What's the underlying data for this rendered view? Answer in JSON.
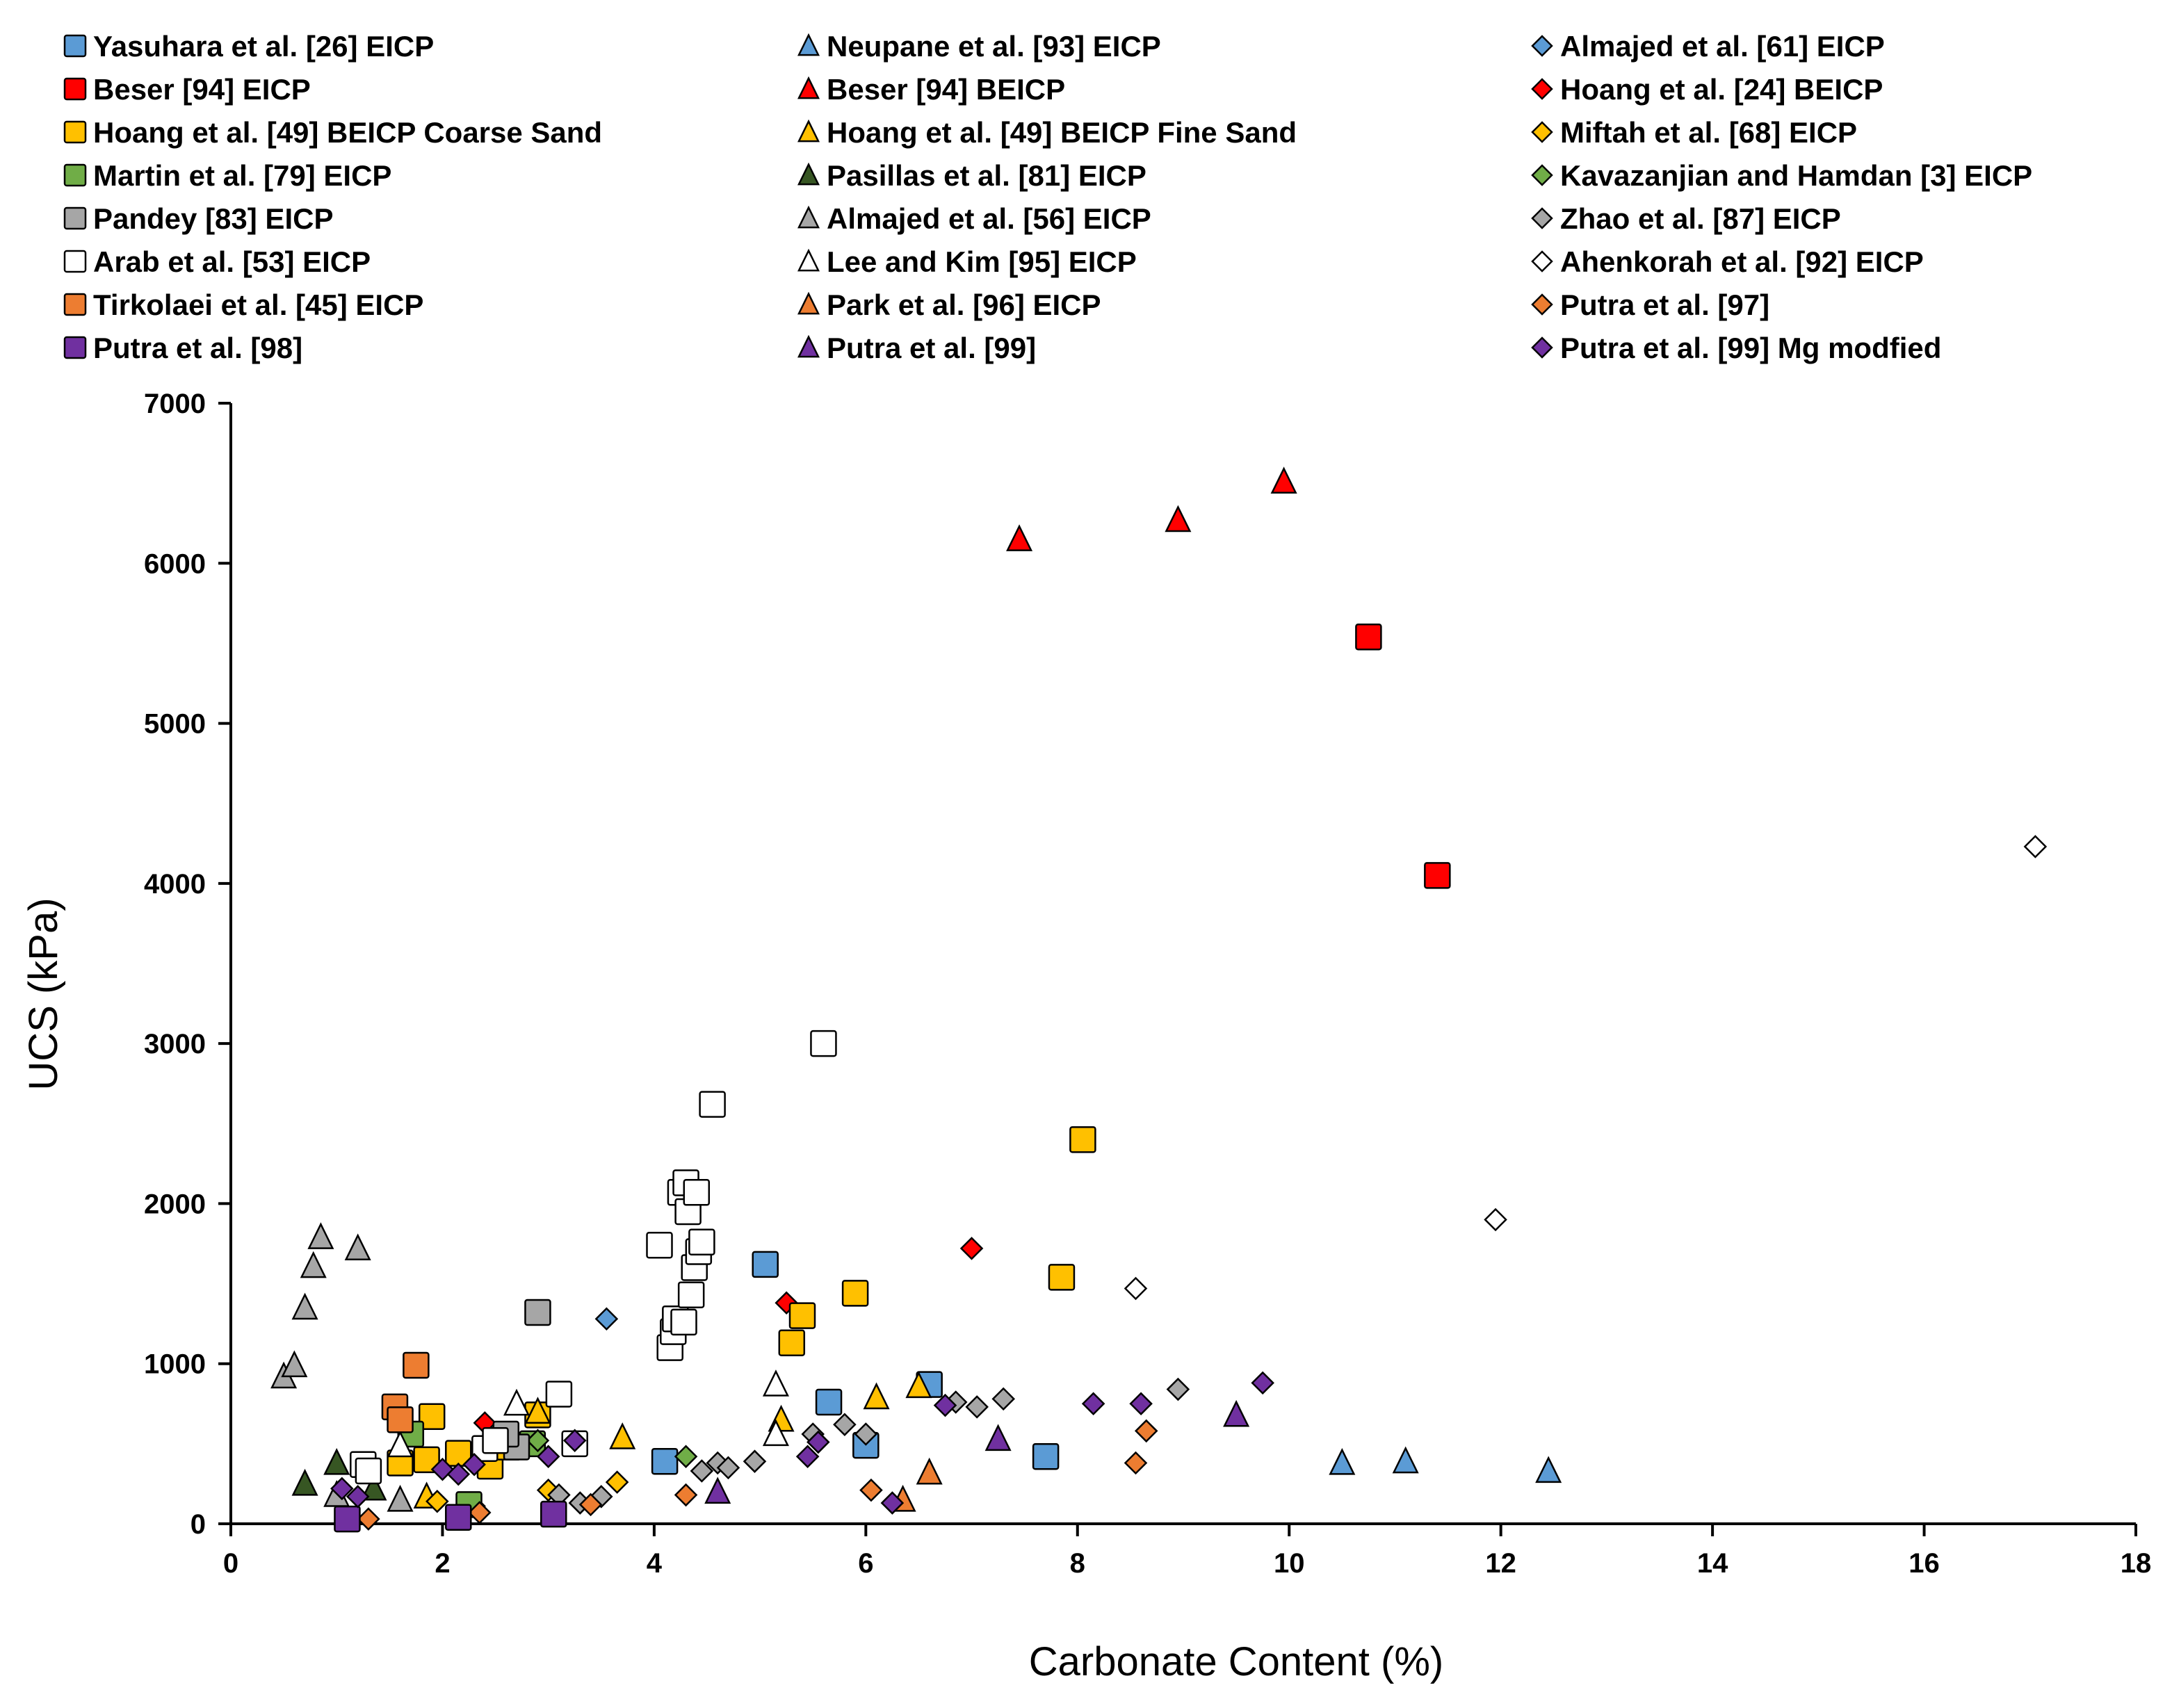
{
  "chart_data": {
    "type": "scatter",
    "xlabel": "Carbonate Content (%)",
    "ylabel": "UCS (kPa)",
    "xlim": [
      0,
      18
    ],
    "ylim": [
      0,
      7000
    ],
    "xticks": [
      "0",
      "2",
      "4",
      "6",
      "8",
      "10",
      "12",
      "14",
      "16",
      "18"
    ],
    "yticks": [
      "0",
      "1000",
      "2000",
      "3000",
      "4000",
      "5000",
      "6000",
      "7000"
    ],
    "grid": false,
    "legend_position": "top",
    "series": [
      {
        "name": "Yasuhara et al. [26] EICP",
        "marker": "square",
        "color": "#5b9bd5",
        "points": [
          [
            4.1,
            390
          ],
          [
            5.05,
            1620
          ],
          [
            5.65,
            760
          ],
          [
            6.0,
            490
          ],
          [
            6.6,
            870
          ],
          [
            7.7,
            420
          ]
        ]
      },
      {
        "name": "Neupane et al. [93] EICP",
        "marker": "triangle",
        "color": "#5b9bd5",
        "points": [
          [
            10.5,
            380
          ],
          [
            11.1,
            390
          ],
          [
            12.45,
            330
          ]
        ]
      },
      {
        "name": "Almajed et al. [61] EICP",
        "marker": "diamond",
        "color": "#5b9bd5",
        "points": [
          [
            3.55,
            1280
          ]
        ]
      },
      {
        "name": "Beser [94] EICP",
        "marker": "square",
        "color": "#ff0000",
        "points": [
          [
            10.75,
            5540
          ],
          [
            11.4,
            4050
          ]
        ]
      },
      {
        "name": "Beser [94] BEICP",
        "marker": "triangle",
        "color": "#ff0000",
        "points": [
          [
            7.45,
            6150
          ],
          [
            8.95,
            6270
          ],
          [
            9.95,
            6510
          ]
        ]
      },
      {
        "name": "Hoang et al. [24] BEICP",
        "marker": "diamond",
        "color": "#ff0000",
        "points": [
          [
            2.4,
            630
          ],
          [
            5.25,
            1380
          ],
          [
            7.0,
            1720
          ]
        ]
      },
      {
        "name": "Hoang et al. [49] BEICP Coarse Sand",
        "marker": "square",
        "color": "#ffc000",
        "points": [
          [
            1.6,
            380
          ],
          [
            1.9,
            670
          ],
          [
            1.85,
            400
          ],
          [
            2.15,
            440
          ],
          [
            2.45,
            360
          ],
          [
            2.9,
            680
          ],
          [
            5.3,
            1130
          ],
          [
            5.4,
            1300
          ],
          [
            5.9,
            1440
          ],
          [
            7.85,
            1540
          ],
          [
            8.05,
            2400
          ]
        ]
      },
      {
        "name": "Hoang et al. [49] BEICP Fine Sand",
        "marker": "triangle",
        "color": "#ffc000",
        "points": [
          [
            1.85,
            170
          ],
          [
            2.6,
            470
          ],
          [
            2.9,
            700
          ],
          [
            3.7,
            540
          ],
          [
            5.2,
            650
          ],
          [
            6.1,
            790
          ],
          [
            6.5,
            860
          ]
        ]
      },
      {
        "name": "Miftah et al. [68] EICP",
        "marker": "diamond",
        "color": "#ffc000",
        "points": [
          [
            1.95,
            140
          ],
          [
            2.3,
            110
          ],
          [
            3.0,
            210
          ],
          [
            3.65,
            260
          ]
        ]
      },
      {
        "name": "Martin et al. [79] EICP",
        "marker": "square",
        "color": "#70ad47",
        "points": [
          [
            1.7,
            560
          ],
          [
            2.25,
            120
          ],
          [
            2.85,
            500
          ]
        ]
      },
      {
        "name": "Pasillas et al. [81] EICP",
        "marker": "triangle",
        "color": "#375623",
        "points": [
          [
            0.7,
            250
          ],
          [
            1.0,
            380
          ],
          [
            1.35,
            220
          ]
        ]
      },
      {
        "name": "Kavazanjian and Hamdan [3] EICP",
        "marker": "diamond",
        "color": "#70ad47",
        "points": [
          [
            4.3,
            420
          ],
          [
            2.9,
            520
          ]
        ]
      },
      {
        "name": "Pandey [83] EICP",
        "marker": "square",
        "color": "#a6a6a6",
        "points": [
          [
            2.9,
            1320
          ],
          [
            2.7,
            480
          ],
          [
            2.6,
            560
          ]
        ]
      },
      {
        "name": "Almajed et al. [56] EICP",
        "marker": "triangle",
        "color": "#a6a6a6",
        "points": [
          [
            0.5,
            920
          ],
          [
            0.6,
            990
          ],
          [
            0.7,
            1350
          ],
          [
            0.78,
            1610
          ],
          [
            0.85,
            1790
          ],
          [
            1.2,
            1720
          ],
          [
            1.6,
            150
          ],
          [
            1.0,
            180
          ]
        ]
      },
      {
        "name": "Zhao et al. [87] EICP",
        "marker": "diamond",
        "color": "#a6a6a6",
        "points": [
          [
            3.1,
            180
          ],
          [
            3.3,
            130
          ],
          [
            3.5,
            170
          ],
          [
            4.45,
            330
          ],
          [
            4.6,
            380
          ],
          [
            4.7,
            350
          ],
          [
            4.95,
            390
          ],
          [
            5.5,
            560
          ],
          [
            5.8,
            620
          ],
          [
            6.0,
            560
          ],
          [
            6.85,
            760
          ],
          [
            7.05,
            730
          ],
          [
            7.3,
            780
          ],
          [
            8.95,
            840
          ]
        ]
      },
      {
        "name": "Arab et al. [53] EICP",
        "marker": "square",
        "color": "#ffffff",
        "points": [
          [
            1.25,
            370
          ],
          [
            1.3,
            330
          ],
          [
            2.4,
            470
          ],
          [
            2.5,
            520
          ],
          [
            3.1,
            810
          ],
          [
            3.25,
            500
          ],
          [
            4.05,
            1740
          ],
          [
            4.15,
            1100
          ],
          [
            4.18,
            1200
          ],
          [
            4.2,
            1280
          ],
          [
            4.25,
            2070
          ],
          [
            4.28,
            1260
          ],
          [
            4.3,
            2130
          ],
          [
            4.32,
            1950
          ],
          [
            4.35,
            1430
          ],
          [
            4.38,
            1600
          ],
          [
            4.4,
            2070
          ],
          [
            4.42,
            1700
          ],
          [
            4.45,
            1760
          ],
          [
            4.55,
            2620
          ],
          [
            5.6,
            3000
          ]
        ]
      },
      {
        "name": "Lee and Kim [95] EICP",
        "marker": "triangle",
        "color": "#ffffff",
        "points": [
          [
            1.6,
            490
          ],
          [
            2.7,
            750
          ],
          [
            5.15,
            870
          ],
          [
            5.15,
            560
          ]
        ]
      },
      {
        "name": "Ahenkorah et al. [92] EICP",
        "marker": "diamond",
        "color": "#ffffff",
        "points": [
          [
            8.55,
            1470
          ],
          [
            11.95,
            1900
          ],
          [
            17.05,
            4230
          ]
        ]
      },
      {
        "name": "Tirkolaei et al. [45] EICP",
        "marker": "square",
        "color": "#ed7d31",
        "points": [
          [
            1.55,
            730
          ],
          [
            1.6,
            650
          ],
          [
            1.75,
            990
          ]
        ]
      },
      {
        "name": "Park et al. [96] EICP",
        "marker": "triangle",
        "color": "#ed7d31",
        "points": [
          [
            6.35,
            150
          ],
          [
            6.6,
            320
          ]
        ]
      },
      {
        "name": "Putra et al. [97]",
        "marker": "diamond",
        "color": "#ed7d31",
        "points": [
          [
            1.3,
            30
          ],
          [
            2.35,
            70
          ],
          [
            3.4,
            120
          ],
          [
            4.3,
            180
          ],
          [
            6.05,
            210
          ],
          [
            8.55,
            380
          ],
          [
            8.65,
            580
          ]
        ]
      },
      {
        "name": "Putra et al. [98]",
        "marker": "square",
        "color": "#7030a0",
        "points": [
          [
            1.1,
            30
          ],
          [
            2.15,
            40
          ],
          [
            3.05,
            60
          ]
        ]
      },
      {
        "name": "Putra et al. [99]",
        "marker": "triangle",
        "color": "#7030a0",
        "points": [
          [
            4.6,
            200
          ],
          [
            7.25,
            530
          ],
          [
            9.5,
            680
          ]
        ]
      },
      {
        "name": "Putra et al. [99] Mg modfied",
        "marker": "diamond",
        "color": "#7030a0",
        "points": [
          [
            1.05,
            220
          ],
          [
            1.2,
            170
          ],
          [
            2.0,
            340
          ],
          [
            2.15,
            310
          ],
          [
            2.3,
            370
          ],
          [
            3.0,
            420
          ],
          [
            3.25,
            520
          ],
          [
            5.45,
            420
          ],
          [
            5.55,
            510
          ],
          [
            6.25,
            130
          ],
          [
            6.75,
            740
          ],
          [
            8.15,
            750
          ],
          [
            8.6,
            750
          ],
          [
            9.75,
            880
          ]
        ]
      }
    ]
  }
}
